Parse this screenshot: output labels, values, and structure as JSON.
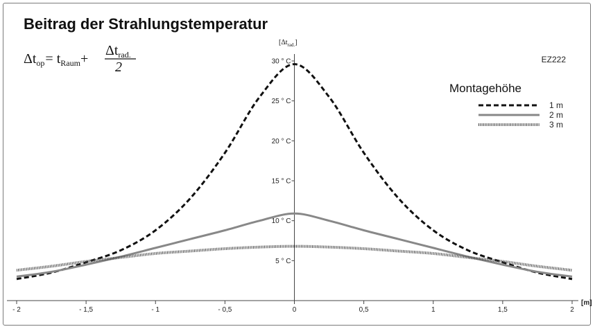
{
  "chart_data": {
    "type": "line",
    "title": "Beitrag der Strahlungstemperatur",
    "code": "EZ222",
    "formula": {
      "lhs_symbol": "Δt",
      "lhs_sub": "op",
      "eq": "= t",
      "rhs_sub": "Raum",
      "plus": "+",
      "num_symbol": "Δt",
      "num_sub": "rad.",
      "denominator": "2"
    },
    "ylabel": {
      "open": "[Δt",
      "sub": "rad.",
      "close": "]"
    },
    "xlabel": "[m]",
    "xlim": [
      -2,
      2
    ],
    "ylim": [
      0,
      30
    ],
    "x_ticks": [
      -2,
      -1.5,
      -1,
      -0.5,
      0,
      0.5,
      1,
      1.5,
      2
    ],
    "x_tick_labels": [
      "- 2",
      "- 1,5",
      "- 1",
      "- 0,5",
      "0",
      "0,5",
      "1",
      "1,5",
      "2"
    ],
    "y_ticks": [
      5,
      10,
      15,
      20,
      25,
      30
    ],
    "y_tick_labels": [
      "5 ° C",
      "10 ° C",
      "15 ° C",
      "20 ° C",
      "25 ° C",
      "30 ° C"
    ],
    "legend_title": "Montagehöhe",
    "legend_position": "top-right",
    "grid": false,
    "series": [
      {
        "name": "1 m",
        "style": "dashed",
        "color": "#111111",
        "x": [
          -2,
          -1.75,
          -1.5,
          -1.25,
          -1,
          -0.75,
          -0.5,
          -0.25,
          0,
          0.25,
          0.5,
          0.75,
          1,
          1.25,
          1.5,
          1.75,
          2
        ],
        "y": [
          2.7,
          3.5,
          4.8,
          6.3,
          8.8,
          12.8,
          18.5,
          25.5,
          29.6,
          25.5,
          18.5,
          12.8,
          8.8,
          6.3,
          4.8,
          3.5,
          2.7
        ]
      },
      {
        "name": "2 m",
        "style": "solid",
        "color": "#888888",
        "x": [
          -2,
          -1.75,
          -1.5,
          -1.25,
          -1,
          -0.75,
          -0.5,
          -0.25,
          0,
          0.25,
          0.5,
          0.75,
          1,
          1.25,
          1.5,
          1.75,
          2
        ],
        "y": [
          3.0,
          3.6,
          4.5,
          5.5,
          6.6,
          7.7,
          8.8,
          10.0,
          10.9,
          10.0,
          8.8,
          7.7,
          6.6,
          5.5,
          4.5,
          3.6,
          3.0
        ]
      },
      {
        "name": "3 m",
        "style": "dotted",
        "color": "#444444",
        "x": [
          -2,
          -1.75,
          -1.5,
          -1.25,
          -1,
          -0.75,
          -0.5,
          -0.25,
          0,
          0.25,
          0.5,
          0.75,
          1,
          1.25,
          1.5,
          1.75,
          2
        ],
        "y": [
          3.8,
          4.3,
          4.9,
          5.4,
          5.9,
          6.2,
          6.5,
          6.7,
          6.8,
          6.7,
          6.5,
          6.2,
          5.9,
          5.4,
          4.9,
          4.3,
          3.8
        ]
      }
    ]
  }
}
